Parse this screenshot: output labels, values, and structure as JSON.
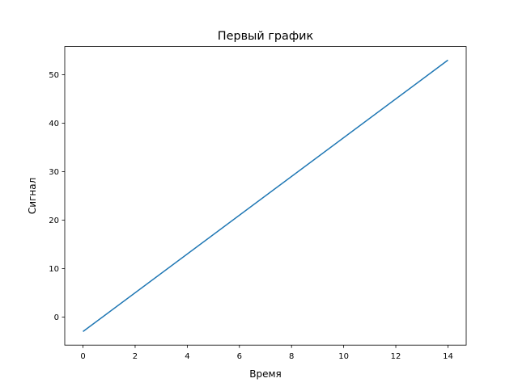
{
  "chart_data": {
    "type": "line",
    "title": "Первый график",
    "xlabel": "Время",
    "ylabel": "Сигнал",
    "xlim": [
      -0.7,
      14.7
    ],
    "ylim": [
      -5.8,
      55.8
    ],
    "xticks": [
      "0",
      "2",
      "4",
      "6",
      "8",
      "10",
      "12",
      "14"
    ],
    "yticks": [
      "0",
      "10",
      "20",
      "30",
      "40",
      "50"
    ],
    "grid": false,
    "series": [
      {
        "x": [
          0,
          14
        ],
        "y": [
          -3,
          53
        ],
        "color": "#1f77b4"
      }
    ]
  }
}
